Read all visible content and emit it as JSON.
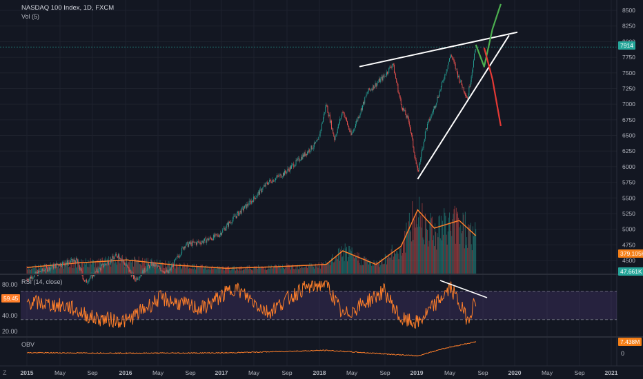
{
  "header": {
    "symbol": "NASDAQ 100 Index, 1D, FXCM",
    "volume_label": "Vol (5)"
  },
  "price_tag": {
    "value": "7914",
    "color": "#26a69a"
  },
  "volume_tags": [
    {
      "value": "379.105K",
      "color": "#f57f17"
    },
    {
      "value": "47.661K",
      "color": "#26a69a"
    }
  ],
  "rsi": {
    "label": "RSI (14, close)",
    "current": "59.45",
    "axis_ticks": [
      "80.00",
      "40.00",
      "20.00"
    ],
    "upper_band": 70,
    "lower_band": 30,
    "color": "#ff7f2a"
  },
  "obv": {
    "label": "OBV",
    "current": "7.438M",
    "axis_ticks": [
      "0"
    ],
    "color": "#ff7f2a"
  },
  "footer": {
    "left_label": "Z"
  },
  "chart_data": {
    "type": "line",
    "title": "NASDAQ 100 Index, 1D, FXCM",
    "xlabel": "",
    "ylabel": "",
    "x_ticks": [
      "2015",
      "May",
      "Sep",
      "2016",
      "May",
      "Sep",
      "2017",
      "May",
      "Sep",
      "2018",
      "May",
      "Sep",
      "2019",
      "May",
      "Sep",
      "2020",
      "May",
      "Sep",
      "2021"
    ],
    "y_ticks": [
      8500,
      8250,
      8000,
      7750,
      7500,
      7250,
      7000,
      6750,
      6500,
      6250,
      6000,
      5750,
      5500,
      5250,
      5000,
      4750,
      4500
    ],
    "ylim": [
      4300,
      8600
    ],
    "grid": true,
    "price_series": [
      {
        "x": "2015-01",
        "y": 4200
      },
      {
        "x": "2015-03",
        "y": 4350
      },
      {
        "x": "2015-05",
        "y": 4450
      },
      {
        "x": "2015-07",
        "y": 4500
      },
      {
        "x": "2015-08",
        "y": 4150
      },
      {
        "x": "2015-10",
        "y": 4400
      },
      {
        "x": "2015-12",
        "y": 4600
      },
      {
        "x": "2016-02",
        "y": 4200
      },
      {
        "x": "2016-04",
        "y": 4450
      },
      {
        "x": "2016-06",
        "y": 4300
      },
      {
        "x": "2016-08",
        "y": 4750
      },
      {
        "x": "2016-10",
        "y": 4800
      },
      {
        "x": "2016-12",
        "y": 4900
      },
      {
        "x": "2017-02",
        "y": 5200
      },
      {
        "x": "2017-04",
        "y": 5450
      },
      {
        "x": "2017-06",
        "y": 5750
      },
      {
        "x": "2017-08",
        "y": 5900
      },
      {
        "x": "2017-10",
        "y": 6150
      },
      {
        "x": "2017-12",
        "y": 6400
      },
      {
        "x": "2018-01",
        "y": 7000
      },
      {
        "x": "2018-02",
        "y": 6450
      },
      {
        "x": "2018-03",
        "y": 6900
      },
      {
        "x": "2018-04",
        "y": 6500
      },
      {
        "x": "2018-06",
        "y": 7200
      },
      {
        "x": "2018-08",
        "y": 7450
      },
      {
        "x": "2018-09",
        "y": 7650
      },
      {
        "x": "2018-10",
        "y": 7000
      },
      {
        "x": "2018-11",
        "y": 6700
      },
      {
        "x": "2018-12",
        "y": 5900
      },
      {
        "x": "2019-01",
        "y": 6600
      },
      {
        "x": "2019-02",
        "y": 6950
      },
      {
        "x": "2019-03",
        "y": 7350
      },
      {
        "x": "2019-04",
        "y": 7800
      },
      {
        "x": "2019-05",
        "y": 7400
      },
      {
        "x": "2019-06",
        "y": 7100
      },
      {
        "x": "2019-07",
        "y": 7914
      }
    ],
    "annotations": [
      {
        "type": "trendline",
        "color": "#ffffff",
        "from": {
          "x": "2018-05",
          "y": 7600
        },
        "to": {
          "x": "2019-12",
          "y": 8150
        }
      },
      {
        "type": "trendline",
        "color": "#ffffff",
        "from": {
          "x": "2018-12",
          "y": 5800
        },
        "to": {
          "x": "2019-11",
          "y": 8100
        }
      },
      {
        "type": "projection",
        "color": "#4caf50",
        "points": [
          {
            "x": "2019-07",
            "y": 7950
          },
          {
            "x": "2019-08",
            "y": 7600
          },
          {
            "x": "2019-09",
            "y": 8200
          },
          {
            "x": "2019-10",
            "y": 8600
          }
        ]
      },
      {
        "type": "projection",
        "color": "#e53935",
        "points": [
          {
            "x": "2019-08",
            "y": 7900
          },
          {
            "x": "2019-09",
            "y": 7400
          },
          {
            "x": "2019-10",
            "y": 6650
          }
        ]
      }
    ],
    "volume_series": [
      {
        "x": "2015-01",
        "y": 40
      },
      {
        "x": "2015-07",
        "y": 70
      },
      {
        "x": "2016-01",
        "y": 90
      },
      {
        "x": "2016-07",
        "y": 55
      },
      {
        "x": "2017-01",
        "y": 35
      },
      {
        "x": "2017-07",
        "y": 45
      },
      {
        "x": "2018-01",
        "y": 60
      },
      {
        "x": "2018-03",
        "y": 150
      },
      {
        "x": "2018-07",
        "y": 60
      },
      {
        "x": "2018-10",
        "y": 180
      },
      {
        "x": "2018-12",
        "y": 420
      },
      {
        "x": "2019-02",
        "y": 300
      },
      {
        "x": "2019-05",
        "y": 350
      },
      {
        "x": "2019-07",
        "y": 250
      }
    ],
    "rsi_series": [
      {
        "x": "2015-01",
        "y": 55
      },
      {
        "x": "2015-06",
        "y": 48
      },
      {
        "x": "2015-09",
        "y": 32
      },
      {
        "x": "2016-01",
        "y": 28
      },
      {
        "x": "2016-05",
        "y": 60
      },
      {
        "x": "2016-10",
        "y": 45
      },
      {
        "x": "2017-02",
        "y": 75
      },
      {
        "x": "2017-06",
        "y": 40
      },
      {
        "x": "2017-10",
        "y": 72
      },
      {
        "x": "2018-01",
        "y": 82
      },
      {
        "x": "2018-03",
        "y": 35
      },
      {
        "x": "2018-08",
        "y": 70
      },
      {
        "x": "2018-10",
        "y": 30
      },
      {
        "x": "2018-12",
        "y": 25
      },
      {
        "x": "2019-04",
        "y": 75
      },
      {
        "x": "2019-06",
        "y": 30
      },
      {
        "x": "2019-07",
        "y": 59
      }
    ],
    "obv_series": [
      {
        "x": "2015-01",
        "y": 0.5
      },
      {
        "x": "2016-01",
        "y": 0.2
      },
      {
        "x": "2017-01",
        "y": 0.4
      },
      {
        "x": "2018-01",
        "y": 2.0
      },
      {
        "x": "2018-12",
        "y": -1.5
      },
      {
        "x": "2019-03",
        "y": 3.0
      },
      {
        "x": "2019-07",
        "y": 7.438
      }
    ]
  }
}
